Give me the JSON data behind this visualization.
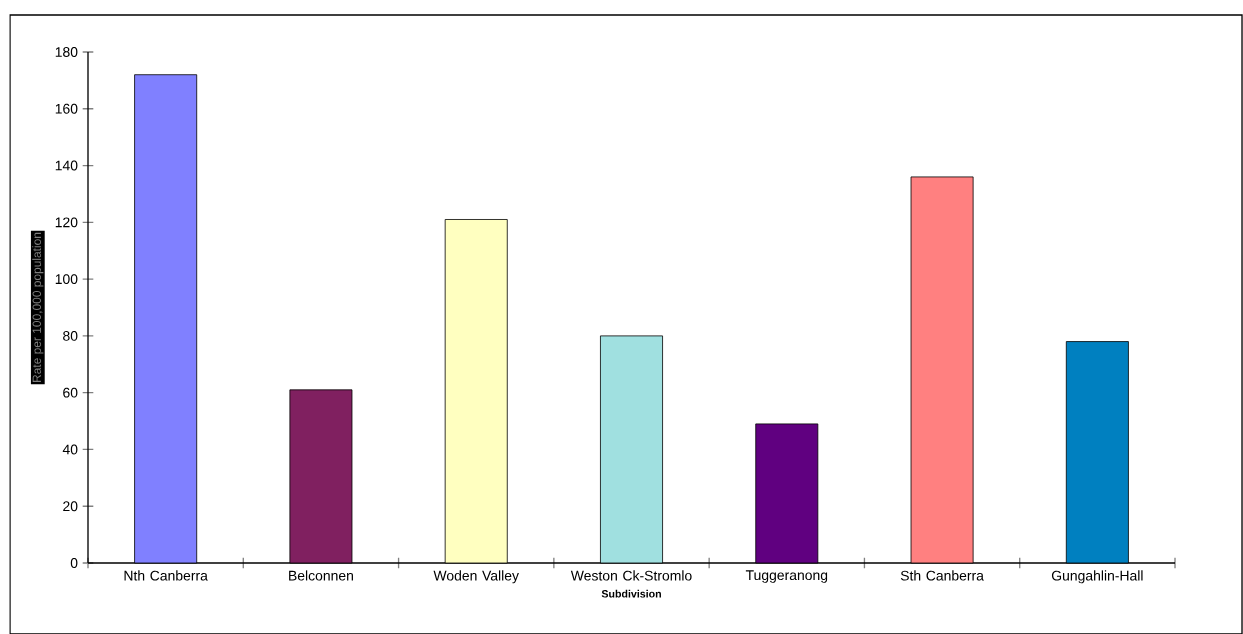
{
  "chart_data": {
    "type": "bar",
    "xlabel": "Subdivision",
    "ylabel": "Rate per 100,000 population",
    "categories": [
      "Nth Canberra",
      "Belconnen",
      "Woden Valley",
      "Weston Ck-Stromlo",
      "Tuggeranong",
      "Sth Canberra",
      "Gungahlin-Hall"
    ],
    "values": [
      172,
      61,
      121,
      80,
      49,
      136,
      78
    ],
    "colors": [
      "#8080ff",
      "#802060",
      "#ffffc0",
      "#a0e0e0",
      "#600080",
      "#ff8080",
      "#0080c0"
    ],
    "ylim": [
      0,
      180
    ],
    "yticks": [
      0,
      20,
      40,
      60,
      80,
      100,
      120,
      140,
      160,
      180
    ]
  }
}
